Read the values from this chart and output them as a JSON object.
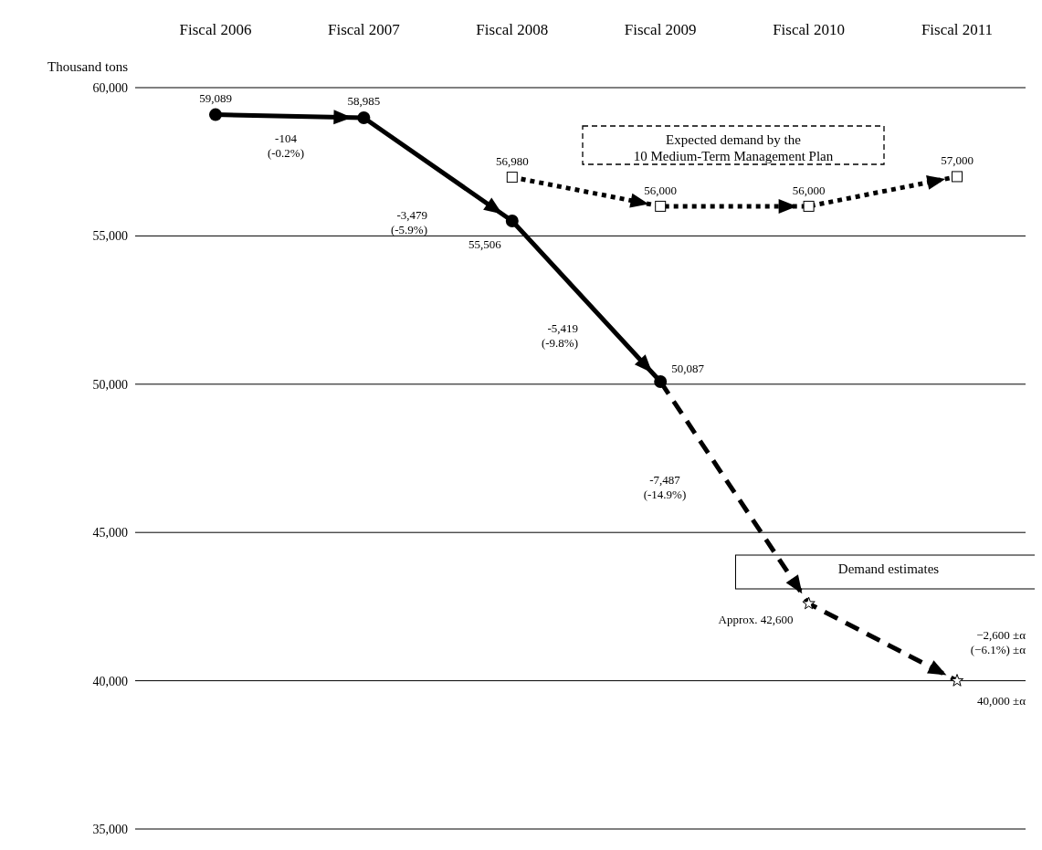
{
  "chart_data": {
    "type": "line",
    "ylabel": "Thousand tons",
    "categories": [
      "Fiscal 2006",
      "Fiscal 2007",
      "Fiscal 2008",
      "Fiscal 2009",
      "Fiscal 2010",
      "Fiscal 2011"
    ],
    "ylim": [
      35000,
      60000
    ],
    "yticks": [
      {
        "value": 35000,
        "label": "35,000"
      },
      {
        "value": 40000,
        "label": "40,000"
      },
      {
        "value": 45000,
        "label": "45,000"
      },
      {
        "value": 50000,
        "label": "50,000"
      },
      {
        "value": 55000,
        "label": "55,000"
      },
      {
        "value": 60000,
        "label": "60,000"
      }
    ],
    "grid": "y",
    "series": [
      {
        "color": "#000000",
        "marker": "none",
        "line_style": "dashed",
        "values": [
          null,
          null,
          null,
          50087,
          42600,
          40000
        ]
      },
      {
        "type": "scatter",
        "color": "#000000",
        "marker": "star",
        "values": [
          null,
          null,
          null,
          null,
          42600,
          40000
        ],
        "value_labels": [
          null,
          null,
          null,
          null,
          "Approx. 42,600",
          "40,000  ±α"
        ]
      },
      {
        "color": "#000000",
        "marker": "square",
        "line_style": "dotted",
        "values": [
          null,
          null,
          56980,
          56000,
          56000,
          57000
        ],
        "value_labels": [
          null,
          null,
          "56,980",
          "56,000",
          "56,000",
          "57,000"
        ]
      },
      {
        "color": "#000000",
        "marker": "circle",
        "line_style": "solid",
        "values": [
          59089,
          58985,
          55506,
          50087,
          null,
          null
        ],
        "value_labels": [
          "59,089",
          "58,985",
          "55,506",
          "50,087",
          null,
          null
        ]
      }
    ],
    "annotations": [
      "-104\n(-0.2%)",
      "-3,479\n(-5.9%)",
      "-5,419\n(-9.8%)",
      "-7,487\n(-14.9%)",
      "Expected demand by the\n10 Medium-Term Management Plan",
      "Demand estimates",
      "−2,600  ±α\n(−6.1%)  ±α"
    ]
  }
}
